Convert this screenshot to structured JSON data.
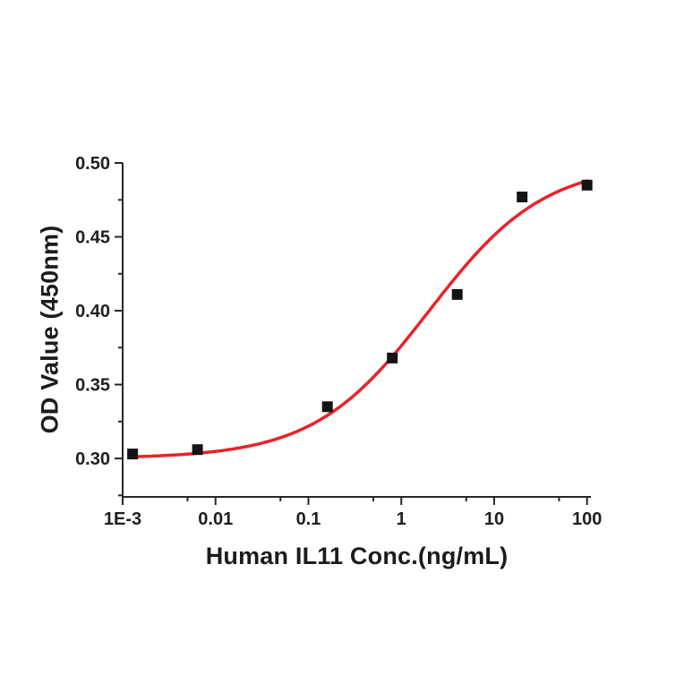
{
  "chart_data": {
    "type": "scatter",
    "title": "",
    "xlabel": "Human IL11 Conc.(ng/mL)",
    "ylabel": "OD Value (450nm)",
    "x_scale": "log",
    "xlim": [
      0.001,
      110
    ],
    "ylim": [
      0.274,
      0.5
    ],
    "grid": false,
    "legend": "none",
    "x_major_ticks": [
      {
        "value": 0.001,
        "label": "1E-3"
      },
      {
        "value": 0.01,
        "label": "0.01"
      },
      {
        "value": 0.1,
        "label": "0.1"
      },
      {
        "value": 1,
        "label": "1"
      },
      {
        "value": 10,
        "label": "10"
      },
      {
        "value": 100,
        "label": "100"
      }
    ],
    "x_minor_ticks": [
      0.005,
      0.05,
      0.5,
      5,
      50
    ],
    "y_major_ticks": [
      {
        "value": 0.3,
        "label": "0.30"
      },
      {
        "value": 0.35,
        "label": "0.35"
      },
      {
        "value": 0.4,
        "label": "0.40"
      },
      {
        "value": 0.45,
        "label": "0.45"
      },
      {
        "value": 0.5,
        "label": "0.50"
      }
    ],
    "y_minor_ticks": [
      0.275,
      0.325,
      0.375,
      0.425,
      0.475
    ],
    "points": [
      {
        "x": 0.00128,
        "y": 0.303
      },
      {
        "x": 0.0064,
        "y": 0.306
      },
      {
        "x": 0.16,
        "y": 0.335
      },
      {
        "x": 0.8,
        "y": 0.368
      },
      {
        "x": 4,
        "y": 0.411
      },
      {
        "x": 20,
        "y": 0.477
      },
      {
        "x": 100,
        "y": 0.485
      }
    ],
    "fit_curve": {
      "model": "4PL",
      "bottom": 0.3,
      "top": 0.5,
      "ec50": 2.0,
      "hill": 0.7,
      "x_start": 0.00125,
      "x_end": 100
    },
    "marker": {
      "shape": "square",
      "color": "#141414",
      "size": 12
    },
    "curve_color": "#e8232a",
    "axis_color": "#262626",
    "tick_label_color": "#1f1f1f",
    "background": "#ffffff"
  }
}
